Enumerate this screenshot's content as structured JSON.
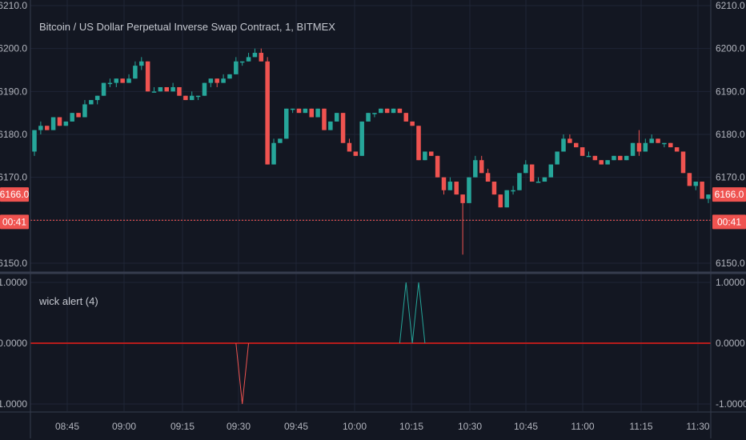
{
  "chart_data": [
    {
      "type": "candlestick",
      "title": "Bitcoin / US Dollar Perpetual Inverse Swap Contract, 1, BITMEX",
      "ylim": [
        6148,
        6211
      ],
      "y_ticks": [
        "6150.0",
        "6160.0",
        "6170.0",
        "6180.0",
        "6190.0",
        "6200.0",
        "6210.0"
      ],
      "x_ticks": [
        "08:45",
        "09:00",
        "09:15",
        "09:30",
        "09:45",
        "10:00",
        "10:15",
        "10:30",
        "10:45",
        "11:00",
        "11:15",
        "11:30"
      ],
      "last_price_tag": "6166.0",
      "countdown_tag": "00:41",
      "dotted_line_value": 6160,
      "colors": {
        "up": "#26a69a",
        "down": "#ef5350"
      },
      "candles": [
        [
          6176,
          6181,
          6175,
          6181
        ],
        [
          6181,
          6183,
          6180,
          6182
        ],
        [
          6182,
          6182,
          6181,
          6181
        ],
        [
          6181,
          6184,
          6181,
          6184
        ],
        [
          6184,
          6184,
          6182,
          6182
        ],
        [
          6182,
          6183,
          6182,
          6183
        ],
        [
          6183,
          6185,
          6183,
          6185
        ],
        [
          6185,
          6185,
          6184,
          6184
        ],
        [
          6184,
          6188,
          6184,
          6187
        ],
        [
          6187,
          6188,
          6187,
          6188
        ],
        [
          6188,
          6189,
          6187,
          6189
        ],
        [
          6189,
          6192,
          6189,
          6192
        ],
        [
          6192,
          6193,
          6191,
          6192
        ],
        [
          6192,
          6193,
          6191,
          6193
        ],
        [
          6193,
          6193,
          6192,
          6192
        ],
        [
          6192,
          6194,
          6192,
          6193
        ],
        [
          6193,
          6197,
          6193,
          6196
        ],
        [
          6196,
          6198,
          6195,
          6197
        ],
        [
          6197,
          6197,
          6190,
          6190
        ],
        [
          6190,
          6191,
          6190,
          6190
        ],
        [
          6190,
          6191,
          6190,
          6191
        ],
        [
          6191,
          6191,
          6190,
          6190
        ],
        [
          6190,
          6192,
          6190,
          6191
        ],
        [
          6191,
          6191,
          6189,
          6189
        ],
        [
          6189,
          6189,
          6188,
          6188
        ],
        [
          6188,
          6190,
          6188,
          6189
        ],
        [
          6189,
          6189,
          6188,
          6189
        ],
        [
          6189,
          6192,
          6189,
          6192
        ],
        [
          6192,
          6193,
          6191,
          6193
        ],
        [
          6193,
          6193,
          6191,
          6192
        ],
        [
          6192,
          6194,
          6192,
          6193
        ],
        [
          6193,
          6194,
          6193,
          6194
        ],
        [
          6194,
          6198,
          6194,
          6197
        ],
        [
          6197,
          6197,
          6196,
          6197
        ],
        [
          6197,
          6199,
          6197,
          6198
        ],
        [
          6198,
          6200,
          6198,
          6199
        ],
        [
          6199,
          6200,
          6197,
          6197
        ],
        [
          6197,
          6198,
          6173,
          6173
        ],
        [
          6173,
          6179,
          6173,
          6178
        ],
        [
          6178,
          6179,
          6178,
          6179
        ],
        [
          6179,
          6186,
          6179,
          6186
        ],
        [
          6186,
          6186,
          6185,
          6186
        ],
        [
          6186,
          6186,
          6185,
          6185
        ],
        [
          6185,
          6186,
          6185,
          6186
        ],
        [
          6186,
          6186,
          6184,
          6184
        ],
        [
          6184,
          6186,
          6184,
          6186
        ],
        [
          6186,
          6186,
          6181,
          6181
        ],
        [
          6181,
          6183,
          6181,
          6183
        ],
        [
          6183,
          6185,
          6183,
          6185
        ],
        [
          6185,
          6185,
          6178,
          6178
        ],
        [
          6178,
          6179,
          6176,
          6176
        ],
        [
          6176,
          6176,
          6175,
          6175
        ],
        [
          6175,
          6183,
          6175,
          6183
        ],
        [
          6183,
          6185,
          6183,
          6185
        ],
        [
          6185,
          6185,
          6184,
          6185
        ],
        [
          6185,
          6186,
          6185,
          6186
        ],
        [
          6186,
          6186,
          6185,
          6185
        ],
        [
          6185,
          6186,
          6185,
          6186
        ],
        [
          6186,
          6186,
          6185,
          6185
        ],
        [
          6185,
          6185,
          6183,
          6183
        ],
        [
          6183,
          6183,
          6182,
          6182
        ],
        [
          6182,
          6182,
          6174,
          6174
        ],
        [
          6174,
          6176,
          6174,
          6176
        ],
        [
          6176,
          6176,
          6175,
          6175
        ],
        [
          6175,
          6175,
          6170,
          6170
        ],
        [
          6170,
          6170,
          6166,
          6167
        ],
        [
          6167,
          6170,
          6167,
          6169
        ],
        [
          6169,
          6169,
          6166,
          6166
        ],
        [
          6166,
          6166,
          6152,
          6164
        ],
        [
          6164,
          6170,
          6164,
          6170
        ],
        [
          6170,
          6175,
          6170,
          6174
        ],
        [
          6174,
          6175,
          6171,
          6171
        ],
        [
          6171,
          6172,
          6169,
          6169
        ],
        [
          6169,
          6169,
          6166,
          6166
        ],
        [
          6166,
          6166,
          6163,
          6163
        ],
        [
          6163,
          6167,
          6163,
          6167
        ],
        [
          6167,
          6168,
          6166,
          6167
        ],
        [
          6167,
          6171,
          6167,
          6171
        ],
        [
          6171,
          6174,
          6171,
          6173
        ],
        [
          6173,
          6173,
          6169,
          6169
        ],
        [
          6169,
          6170,
          6169,
          6169
        ],
        [
          6169,
          6170,
          6169,
          6170
        ],
        [
          6170,
          6173,
          6170,
          6173
        ],
        [
          6173,
          6176,
          6173,
          6176
        ],
        [
          6176,
          6180,
          6176,
          6179
        ],
        [
          6179,
          6180,
          6178,
          6178
        ],
        [
          6178,
          6178,
          6177,
          6177
        ],
        [
          6177,
          6177,
          6175,
          6175
        ],
        [
          6175,
          6176,
          6175,
          6175
        ],
        [
          6175,
          6175,
          6174,
          6174
        ],
        [
          6174,
          6174,
          6173,
          6173
        ],
        [
          6173,
          6174,
          6173,
          6174
        ],
        [
          6174,
          6175,
          6174,
          6175
        ],
        [
          6175,
          6175,
          6174,
          6174
        ],
        [
          6174,
          6175,
          6174,
          6175
        ],
        [
          6175,
          6178,
          6175,
          6178
        ],
        [
          6178,
          6181,
          6175,
          6176
        ],
        [
          6176,
          6179,
          6176,
          6178
        ],
        [
          6178,
          6180,
          6178,
          6179
        ],
        [
          6179,
          6179,
          6178,
          6178
        ],
        [
          6178,
          6178,
          6177,
          6178
        ],
        [
          6178,
          6178,
          6177,
          6177
        ],
        [
          6177,
          6177,
          6176,
          6176
        ],
        [
          6176,
          6176,
          6171,
          6171
        ],
        [
          6171,
          6171,
          6168,
          6168
        ],
        [
          6168,
          6169,
          6167,
          6169
        ],
        [
          6169,
          6169,
          6165,
          6165
        ],
        [
          6165,
          6166,
          6164,
          6166
        ]
      ]
    },
    {
      "type": "line",
      "title": "wick alert (4)",
      "ylim": [
        -1.05,
        1.0
      ],
      "y_ticks": [
        "-1.0000",
        "0.0000",
        "1.0000"
      ],
      "zero_line_color": "#b71c1c",
      "series": [
        {
          "color": "#ef5350",
          "points": [
            [
              32,
              0
            ],
            [
              33,
              -1
            ],
            [
              34,
              0
            ]
          ]
        },
        {
          "color": "#26a69a",
          "points": [
            [
              58,
              0
            ],
            [
              59,
              1
            ],
            [
              60,
              0
            ],
            [
              61,
              1
            ],
            [
              62,
              0
            ]
          ]
        }
      ]
    }
  ]
}
